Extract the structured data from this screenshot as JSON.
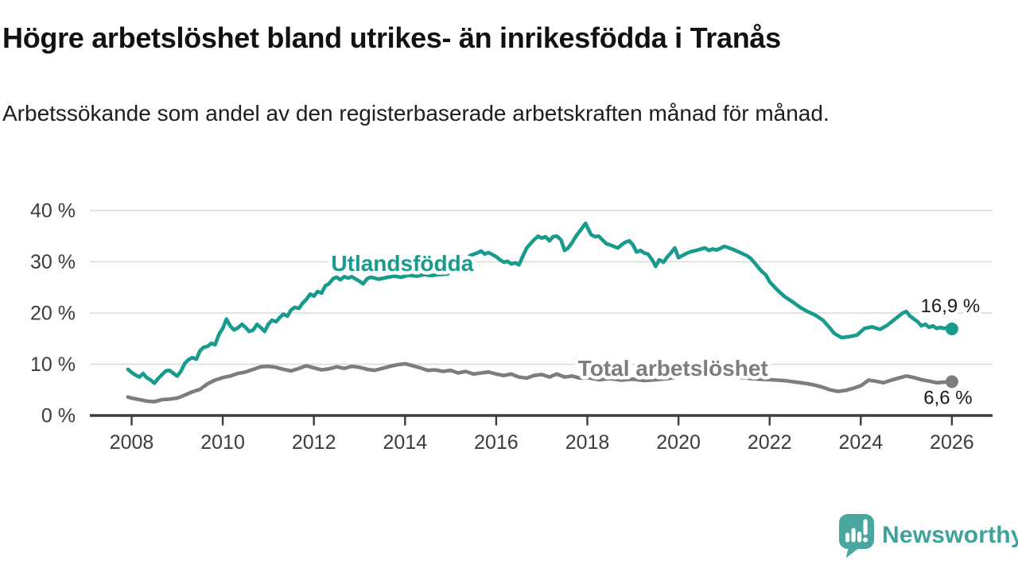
{
  "header": {
    "title": "Högre arbetslöshet bland utrikes- än inrikesfödda i Tranås",
    "subtitle": "Arbetssökande som andel av den registerbaserade arbetskraften månad för månad."
  },
  "chart_data": {
    "type": "line",
    "title": "Högre arbetslöshet bland utrikes- än inrikesfödda i Tranås",
    "subtitle": "Arbetssökande som andel av den registerbaserade arbetskraften månad för månad.",
    "xlabel": "",
    "ylabel": "",
    "xlim": [
      2007.1,
      2026.9
    ],
    "ylim": [
      0,
      40
    ],
    "grid": "horizontal",
    "legend_position": "inline-labels",
    "x_ticks": [
      2008,
      2010,
      2012,
      2014,
      2016,
      2018,
      2020,
      2022,
      2024,
      2026
    ],
    "x_tick_labels": [
      "2008",
      "2010",
      "2012",
      "2014",
      "2016",
      "2018",
      "2020",
      "2022",
      "2024",
      "2026"
    ],
    "y_ticks": [
      0,
      10,
      20,
      30,
      40
    ],
    "y_tick_labels": [
      "0 %",
      "10 %",
      "20 %",
      "30 %",
      "40 %"
    ],
    "series": [
      {
        "name": "Utlandsfödda",
        "color": "#189b8d",
        "end_value": 16.9,
        "end_label": "16,9 %",
        "label_anchor": {
          "x": 2013.94,
          "y": 29.8
        },
        "points": [
          [
            2007.92,
            9.0
          ],
          [
            2008.0,
            8.4
          ],
          [
            2008.08,
            7.9
          ],
          [
            2008.17,
            7.5
          ],
          [
            2008.25,
            8.2
          ],
          [
            2008.33,
            7.4
          ],
          [
            2008.42,
            6.9
          ],
          [
            2008.5,
            6.3
          ],
          [
            2008.58,
            7.2
          ],
          [
            2008.67,
            8.0
          ],
          [
            2008.75,
            8.7
          ],
          [
            2008.83,
            8.8
          ],
          [
            2008.92,
            8.2
          ],
          [
            2009.0,
            7.7
          ],
          [
            2009.08,
            8.6
          ],
          [
            2009.17,
            10.2
          ],
          [
            2009.25,
            10.9
          ],
          [
            2009.33,
            11.3
          ],
          [
            2009.42,
            11.0
          ],
          [
            2009.5,
            12.6
          ],
          [
            2009.58,
            13.3
          ],
          [
            2009.67,
            13.5
          ],
          [
            2009.75,
            14.1
          ],
          [
            2009.83,
            13.8
          ],
          [
            2009.92,
            15.9
          ],
          [
            2010.0,
            17.0
          ],
          [
            2010.08,
            18.8
          ],
          [
            2010.17,
            17.4
          ],
          [
            2010.25,
            16.7
          ],
          [
            2010.33,
            17.1
          ],
          [
            2010.42,
            17.8
          ],
          [
            2010.5,
            17.2
          ],
          [
            2010.58,
            16.4
          ],
          [
            2010.67,
            16.7
          ],
          [
            2010.75,
            17.8
          ],
          [
            2010.83,
            17.2
          ],
          [
            2010.92,
            16.4
          ],
          [
            2011.0,
            17.8
          ],
          [
            2011.08,
            18.6
          ],
          [
            2011.17,
            18.3
          ],
          [
            2011.25,
            19.1
          ],
          [
            2011.33,
            19.8
          ],
          [
            2011.42,
            19.4
          ],
          [
            2011.5,
            20.6
          ],
          [
            2011.58,
            21.1
          ],
          [
            2011.67,
            20.9
          ],
          [
            2011.75,
            21.9
          ],
          [
            2011.83,
            22.6
          ],
          [
            2011.92,
            23.7
          ],
          [
            2012.0,
            23.3
          ],
          [
            2012.08,
            24.2
          ],
          [
            2012.17,
            23.9
          ],
          [
            2012.25,
            25.3
          ],
          [
            2012.33,
            25.7
          ],
          [
            2012.42,
            26.7
          ],
          [
            2012.5,
            27.0
          ],
          [
            2012.58,
            26.5
          ],
          [
            2012.67,
            27.1
          ],
          [
            2012.75,
            26.8
          ],
          [
            2012.83,
            27.1
          ],
          [
            2012.92,
            26.6
          ],
          [
            2013.0,
            26.2
          ],
          [
            2013.08,
            25.7
          ],
          [
            2013.17,
            26.7
          ],
          [
            2013.25,
            27.0
          ],
          [
            2013.42,
            26.6
          ],
          [
            2013.58,
            26.9
          ],
          [
            2013.75,
            27.2
          ],
          [
            2013.92,
            27.0
          ],
          [
            2014.08,
            27.4
          ],
          [
            2014.25,
            27.2
          ],
          [
            2014.42,
            27.5
          ],
          [
            2014.58,
            27.3
          ],
          [
            2014.75,
            27.5
          ],
          [
            2014.92,
            27.6
          ],
          [
            2015.08,
            28.4
          ],
          [
            2015.25,
            29.6
          ],
          [
            2015.42,
            31.2
          ],
          [
            2015.58,
            31.7
          ],
          [
            2015.67,
            32.1
          ],
          [
            2015.75,
            31.5
          ],
          [
            2015.83,
            31.8
          ],
          [
            2016.0,
            31.0
          ],
          [
            2016.08,
            30.4
          ],
          [
            2016.17,
            29.9
          ],
          [
            2016.25,
            30.1
          ],
          [
            2016.33,
            29.6
          ],
          [
            2016.42,
            29.8
          ],
          [
            2016.5,
            29.4
          ],
          [
            2016.58,
            31.0
          ],
          [
            2016.67,
            32.7
          ],
          [
            2016.75,
            33.5
          ],
          [
            2016.83,
            34.3
          ],
          [
            2016.92,
            35.0
          ],
          [
            2017.0,
            34.6
          ],
          [
            2017.08,
            34.9
          ],
          [
            2017.17,
            34.1
          ],
          [
            2017.25,
            34.9
          ],
          [
            2017.33,
            35.0
          ],
          [
            2017.42,
            34.3
          ],
          [
            2017.5,
            32.2
          ],
          [
            2017.58,
            32.7
          ],
          [
            2017.67,
            33.8
          ],
          [
            2017.75,
            35.0
          ],
          [
            2017.87,
            36.4
          ],
          [
            2017.96,
            37.5
          ],
          [
            2018.08,
            35.3
          ],
          [
            2018.17,
            34.9
          ],
          [
            2018.25,
            35.0
          ],
          [
            2018.33,
            34.3
          ],
          [
            2018.42,
            33.5
          ],
          [
            2018.5,
            33.3
          ],
          [
            2018.58,
            33.0
          ],
          [
            2018.67,
            32.7
          ],
          [
            2018.75,
            33.3
          ],
          [
            2018.83,
            33.8
          ],
          [
            2018.92,
            34.1
          ],
          [
            2019.0,
            33.3
          ],
          [
            2019.08,
            31.9
          ],
          [
            2019.17,
            32.2
          ],
          [
            2019.25,
            31.7
          ],
          [
            2019.33,
            31.5
          ],
          [
            2019.42,
            30.4
          ],
          [
            2019.5,
            29.1
          ],
          [
            2019.58,
            30.4
          ],
          [
            2019.67,
            29.9
          ],
          [
            2019.75,
            30.9
          ],
          [
            2019.83,
            31.7
          ],
          [
            2019.92,
            32.7
          ],
          [
            2020.0,
            30.8
          ],
          [
            2020.08,
            31.2
          ],
          [
            2020.17,
            31.6
          ],
          [
            2020.25,
            31.9
          ],
          [
            2020.33,
            32.1
          ],
          [
            2020.42,
            32.3
          ],
          [
            2020.5,
            32.5
          ],
          [
            2020.58,
            32.7
          ],
          [
            2020.67,
            32.2
          ],
          [
            2020.75,
            32.5
          ],
          [
            2020.83,
            32.3
          ],
          [
            2020.92,
            32.6
          ],
          [
            2021.0,
            33.0
          ],
          [
            2021.08,
            32.8
          ],
          [
            2021.17,
            32.5
          ],
          [
            2021.25,
            32.2
          ],
          [
            2021.33,
            31.9
          ],
          [
            2021.42,
            31.5
          ],
          [
            2021.5,
            31.2
          ],
          [
            2021.58,
            30.7
          ],
          [
            2021.67,
            29.8
          ],
          [
            2021.75,
            28.9
          ],
          [
            2021.83,
            28.1
          ],
          [
            2021.92,
            27.4
          ],
          [
            2022.0,
            26.1
          ],
          [
            2022.17,
            24.5
          ],
          [
            2022.33,
            23.2
          ],
          [
            2022.5,
            22.2
          ],
          [
            2022.67,
            21.1
          ],
          [
            2022.83,
            20.3
          ],
          [
            2023.0,
            19.6
          ],
          [
            2023.17,
            18.6
          ],
          [
            2023.33,
            17.0
          ],
          [
            2023.42,
            16.0
          ],
          [
            2023.58,
            15.2
          ],
          [
            2023.75,
            15.4
          ],
          [
            2023.92,
            15.7
          ],
          [
            2024.08,
            17.0
          ],
          [
            2024.25,
            17.3
          ],
          [
            2024.42,
            16.8
          ],
          [
            2024.58,
            17.6
          ],
          [
            2024.75,
            18.8
          ],
          [
            2024.92,
            20.0
          ],
          [
            2025.0,
            20.3
          ],
          [
            2025.08,
            19.4
          ],
          [
            2025.25,
            18.3
          ],
          [
            2025.33,
            17.5
          ],
          [
            2025.42,
            17.8
          ],
          [
            2025.5,
            17.2
          ],
          [
            2025.58,
            17.5
          ],
          [
            2025.67,
            17.0
          ],
          [
            2025.75,
            17.2
          ],
          [
            2025.83,
            17.0
          ],
          [
            2025.92,
            17.2
          ],
          [
            2026.0,
            16.9
          ]
        ]
      },
      {
        "name": "Total arbetslöshet",
        "color": "#7d7d7d",
        "end_value": 6.6,
        "end_label": "6,6 %",
        "label_anchor": {
          "x": 2019.88,
          "y": 9.3
        },
        "points": [
          [
            2007.92,
            3.6
          ],
          [
            2008.0,
            3.4
          ],
          [
            2008.17,
            3.1
          ],
          [
            2008.33,
            2.8
          ],
          [
            2008.5,
            2.7
          ],
          [
            2008.67,
            3.1
          ],
          [
            2008.83,
            3.2
          ],
          [
            2009.0,
            3.4
          ],
          [
            2009.17,
            4.0
          ],
          [
            2009.33,
            4.6
          ],
          [
            2009.5,
            5.1
          ],
          [
            2009.67,
            6.2
          ],
          [
            2009.83,
            6.9
          ],
          [
            2010.0,
            7.4
          ],
          [
            2010.17,
            7.7
          ],
          [
            2010.33,
            8.2
          ],
          [
            2010.5,
            8.5
          ],
          [
            2010.67,
            9.0
          ],
          [
            2010.83,
            9.5
          ],
          [
            2011.0,
            9.6
          ],
          [
            2011.17,
            9.4
          ],
          [
            2011.33,
            9.0
          ],
          [
            2011.5,
            8.7
          ],
          [
            2011.67,
            9.2
          ],
          [
            2011.83,
            9.7
          ],
          [
            2012.0,
            9.3
          ],
          [
            2012.17,
            8.9
          ],
          [
            2012.33,
            9.1
          ],
          [
            2012.5,
            9.5
          ],
          [
            2012.67,
            9.2
          ],
          [
            2012.83,
            9.6
          ],
          [
            2013.0,
            9.4
          ],
          [
            2013.17,
            9.0
          ],
          [
            2013.33,
            8.8
          ],
          [
            2013.5,
            9.2
          ],
          [
            2013.67,
            9.6
          ],
          [
            2013.83,
            9.9
          ],
          [
            2014.0,
            10.1
          ],
          [
            2014.17,
            9.7
          ],
          [
            2014.33,
            9.3
          ],
          [
            2014.5,
            8.8
          ],
          [
            2014.67,
            8.9
          ],
          [
            2014.83,
            8.6
          ],
          [
            2015.0,
            8.8
          ],
          [
            2015.17,
            8.3
          ],
          [
            2015.33,
            8.6
          ],
          [
            2015.5,
            8.1
          ],
          [
            2015.67,
            8.3
          ],
          [
            2015.83,
            8.5
          ],
          [
            2016.0,
            8.1
          ],
          [
            2016.17,
            7.8
          ],
          [
            2016.33,
            8.1
          ],
          [
            2016.5,
            7.5
          ],
          [
            2016.67,
            7.3
          ],
          [
            2016.83,
            7.8
          ],
          [
            2017.0,
            8.0
          ],
          [
            2017.17,
            7.5
          ],
          [
            2017.33,
            8.1
          ],
          [
            2017.5,
            7.5
          ],
          [
            2017.67,
            7.7
          ],
          [
            2017.83,
            7.3
          ],
          [
            2018.0,
            7.4
          ],
          [
            2018.25,
            7.0
          ],
          [
            2018.5,
            7.2
          ],
          [
            2018.75,
            6.9
          ],
          [
            2019.0,
            7.1
          ],
          [
            2019.25,
            6.8
          ],
          [
            2019.5,
            7.0
          ],
          [
            2019.75,
            7.2
          ],
          [
            2020.0,
            7.5
          ],
          [
            2020.25,
            8.0
          ],
          [
            2020.5,
            8.3
          ],
          [
            2020.75,
            8.1
          ],
          [
            2021.0,
            7.8
          ],
          [
            2021.25,
            7.5
          ],
          [
            2021.5,
            7.3
          ],
          [
            2021.75,
            7.1
          ],
          [
            2022.0,
            7.0
          ],
          [
            2022.17,
            6.9
          ],
          [
            2022.33,
            6.8
          ],
          [
            2022.5,
            6.6
          ],
          [
            2022.67,
            6.4
          ],
          [
            2022.83,
            6.2
          ],
          [
            2023.0,
            5.9
          ],
          [
            2023.17,
            5.5
          ],
          [
            2023.33,
            5.0
          ],
          [
            2023.5,
            4.7
          ],
          [
            2023.67,
            4.9
          ],
          [
            2023.83,
            5.3
          ],
          [
            2024.0,
            5.8
          ],
          [
            2024.08,
            6.3
          ],
          [
            2024.17,
            6.9
          ],
          [
            2024.33,
            6.7
          ],
          [
            2024.5,
            6.4
          ],
          [
            2024.67,
            6.9
          ],
          [
            2024.83,
            7.3
          ],
          [
            2025.0,
            7.7
          ],
          [
            2025.17,
            7.4
          ],
          [
            2025.33,
            7.0
          ],
          [
            2025.5,
            6.7
          ],
          [
            2025.67,
            6.4
          ],
          [
            2025.83,
            6.5
          ],
          [
            2026.0,
            6.6
          ]
        ]
      }
    ]
  },
  "footer": {
    "brand": "Newsworthy",
    "logo_icon": "speech-bubble-bar-chart-exclamation"
  },
  "colors": {
    "series_utlandsfodda": "#189b8d",
    "series_total": "#7d7d7d",
    "logo_teal": "#4aa7a0",
    "brand_text_teal": "#3da29a",
    "gridline": "#d9d9d9",
    "axis": "#3d3d3d",
    "tick_text": "#3c3c3c",
    "annotation_text": "#1a1a1a",
    "title_text": "#111111",
    "background": "#ffffff"
  }
}
